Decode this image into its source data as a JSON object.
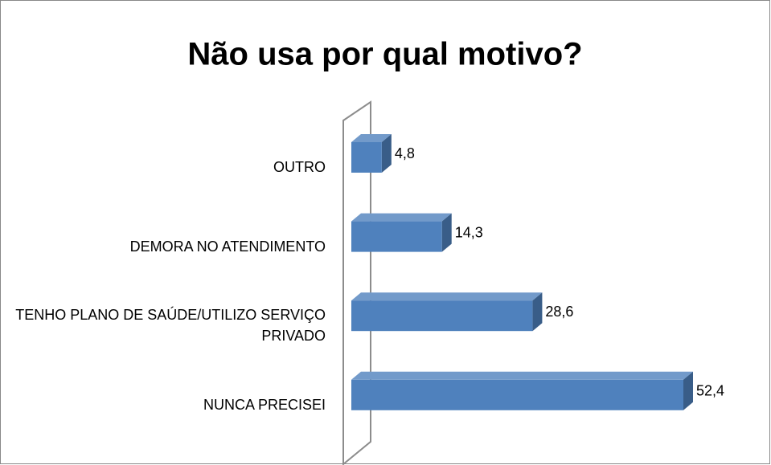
{
  "chart_data": {
    "type": "bar3d_horizontal",
    "title": "Não usa por qual motivo?",
    "categories": [
      "OUTRO",
      "DEMORA NO ATENDIMENTO",
      "TENHO PLANO DE SAÚDE/UTILIZO SERVIÇO PRIVADO",
      "NUNCA PRECISEI"
    ],
    "values": [
      4.8,
      14.3,
      28.6,
      52.4
    ],
    "value_labels": [
      "4,8",
      "14,3",
      "28,6",
      "52,4"
    ],
    "color": "#4f81bd"
  }
}
